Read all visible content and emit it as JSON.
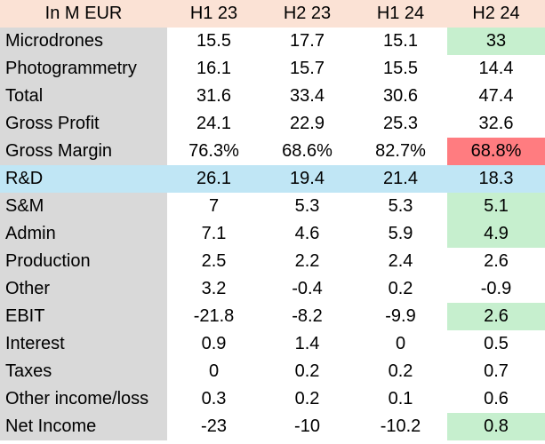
{
  "table": {
    "header": [
      "In M EUR",
      "H1 23",
      "H2 23",
      "H1 24",
      "H2 24"
    ],
    "rows": [
      {
        "label": "Microdrones",
        "values": [
          "15.5",
          "17.7",
          "15.1",
          "33"
        ]
      },
      {
        "label": "Photogrammetry",
        "values": [
          "16.1",
          "15.7",
          "15.5",
          "14.4"
        ]
      },
      {
        "label": "Total",
        "values": [
          "31.6",
          "33.4",
          "30.6",
          "47.4"
        ]
      },
      {
        "label": "Gross Profit",
        "values": [
          "24.1",
          "22.9",
          "25.3",
          "32.6"
        ]
      },
      {
        "label": "Gross Margin",
        "values": [
          "76.3%",
          "68.6%",
          "82.7%",
          "68.8%"
        ]
      },
      {
        "label": "R&D",
        "values": [
          "26.1",
          "19.4",
          "21.4",
          "18.3"
        ]
      },
      {
        "label": "S&M",
        "values": [
          "7",
          "5.3",
          "5.3",
          "5.1"
        ]
      },
      {
        "label": "Admin",
        "values": [
          "7.1",
          "4.6",
          "5.9",
          "4.9"
        ]
      },
      {
        "label": "Production",
        "values": [
          "2.5",
          "2.2",
          "2.4",
          "2.6"
        ]
      },
      {
        "label": "Other",
        "values": [
          "3.2",
          "-0.4",
          "0.2",
          "-0.9"
        ]
      },
      {
        "label": "EBIT",
        "values": [
          "-21.8",
          "-8.2",
          "-9.9",
          "2.6"
        ]
      },
      {
        "label": "Interest",
        "values": [
          "0.9",
          "1.4",
          "0",
          "0.5"
        ]
      },
      {
        "label": "Taxes",
        "values": [
          "0",
          "0.2",
          "0.2",
          "0.7"
        ]
      },
      {
        "label": "Other income/loss",
        "values": [
          "0.3",
          "0.2",
          "0.1",
          "0.6"
        ]
      },
      {
        "label": "Net Income",
        "values": [
          "-23",
          "-10",
          "-10.2",
          "0.8"
        ]
      }
    ]
  },
  "colors": {
    "header_fill": "#fbe2d5",
    "label_fill": "#d9d9d9",
    "highlight_row_fill": "#c0e6f5",
    "positive_cell_fill": "#c6efce",
    "negative_cell_fill": "#ff7c80"
  }
}
